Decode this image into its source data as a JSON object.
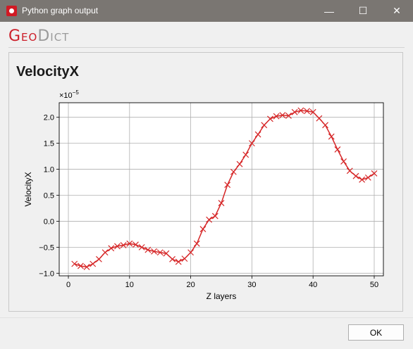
{
  "window": {
    "title": "Python graph output",
    "minimize_glyph": "—",
    "maximize_glyph": "☐",
    "close_glyph": "✕",
    "icon": "geodict-app-icon"
  },
  "logo": {
    "part1": "Geo",
    "part2": "Dict"
  },
  "panel": {
    "title": "VelocityX"
  },
  "chart_data": {
    "type": "line",
    "title": "",
    "xlabel": "Z layers",
    "ylabel": "VelocityX",
    "scale_label": "×10",
    "scale_exponent": "−5",
    "xlim": [
      -1.5,
      51.5
    ],
    "ylim": [
      -1.05,
      2.28
    ],
    "xticks": [
      0,
      10,
      20,
      30,
      40,
      50
    ],
    "yticks": [
      -1.0,
      -0.5,
      0.0,
      0.5,
      1.0,
      1.5,
      2.0
    ],
    "ytick_labels": [
      "−1.0",
      "−0.5",
      "0.0",
      "0.5",
      "1.0",
      "1.5",
      "2.0"
    ],
    "grid": true,
    "line_color": "#d62728",
    "marker": "x",
    "series": [
      {
        "x": [
          1,
          2,
          3,
          4,
          5,
          6,
          7,
          8,
          9,
          10,
          11,
          12,
          13,
          14,
          15,
          16,
          17,
          18,
          19,
          20,
          21,
          22,
          23,
          24,
          25,
          26,
          27,
          28,
          29,
          30,
          31,
          32,
          33,
          34,
          35,
          36,
          37,
          38,
          39,
          40,
          41,
          42,
          43,
          44,
          45,
          46,
          47,
          48,
          49,
          50
        ],
        "values": [
          -0.82,
          -0.86,
          -0.88,
          -0.82,
          -0.73,
          -0.6,
          -0.52,
          -0.48,
          -0.46,
          -0.43,
          -0.45,
          -0.5,
          -0.55,
          -0.58,
          -0.6,
          -0.62,
          -0.73,
          -0.78,
          -0.72,
          -0.6,
          -0.43,
          -0.15,
          0.03,
          0.1,
          0.35,
          0.7,
          0.95,
          1.1,
          1.28,
          1.5,
          1.67,
          1.85,
          1.97,
          2.02,
          2.04,
          2.03,
          2.1,
          2.13,
          2.12,
          2.1,
          1.98,
          1.85,
          1.63,
          1.38,
          1.15,
          0.97,
          0.87,
          0.8,
          0.84,
          0.92
        ]
      }
    ]
  },
  "footer": {
    "ok_label": "OK"
  }
}
